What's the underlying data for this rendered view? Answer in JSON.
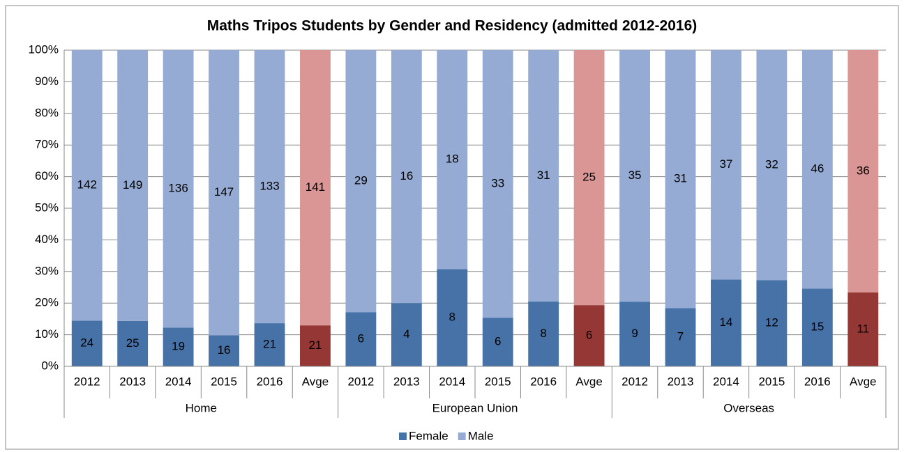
{
  "chart_data": {
    "type": "bar",
    "stacking": "percent",
    "title": "Maths Tripos Students by Gender and Residency (admitted 2012-2016)",
    "categories": [
      "2012",
      "2013",
      "2014",
      "2015",
      "2016",
      "Avge",
      "2012",
      "2013",
      "2014",
      "2015",
      "2016",
      "Avge",
      "2012",
      "2013",
      "2014",
      "2015",
      "2016",
      "Avge"
    ],
    "groups": [
      "Home",
      "European Union",
      "Overseas"
    ],
    "series": [
      {
        "name": "Female",
        "color": "#4672a8",
        "colors": [
          "#4672a8",
          "#4672a8",
          "#4672a8",
          "#4672a8",
          "#4672a8",
          "#953735",
          "#4672a8",
          "#4672a8",
          "#4672a8",
          "#4672a8",
          "#4672a8",
          "#953735",
          "#4672a8",
          "#4672a8",
          "#4672a8",
          "#4672a8",
          "#4672a8",
          "#953735"
        ],
        "values": [
          24,
          25,
          19,
          16,
          21,
          21,
          6,
          4,
          8,
          6,
          8,
          6,
          9,
          7,
          14,
          12,
          15,
          11
        ]
      },
      {
        "name": "Male",
        "color": "#95abd3",
        "colors": [
          "#95abd3",
          "#95abd3",
          "#95abd3",
          "#95abd3",
          "#95abd3",
          "#d99694",
          "#95abd3",
          "#95abd3",
          "#95abd3",
          "#95abd3",
          "#95abd3",
          "#d99694",
          "#95abd3",
          "#95abd3",
          "#95abd3",
          "#95abd3",
          "#95abd3",
          "#d99694"
        ],
        "values": [
          142,
          149,
          136,
          147,
          133,
          141,
          29,
          16,
          18,
          33,
          31,
          25,
          35,
          31,
          37,
          32,
          46,
          36
        ]
      }
    ],
    "ylim": [
      0,
      100
    ],
    "yticks": [
      {
        "value": 0,
        "label": "0%"
      },
      {
        "value": 10,
        "label": "10%"
      },
      {
        "value": 20,
        "label": "20%"
      },
      {
        "value": 30,
        "label": "30%"
      },
      {
        "value": 40,
        "label": "40%"
      },
      {
        "value": 50,
        "label": "50%"
      },
      {
        "value": 60,
        "label": "60%"
      },
      {
        "value": 70,
        "label": "70%"
      },
      {
        "value": 80,
        "label": "80%"
      },
      {
        "value": 90,
        "label": "90%"
      },
      {
        "value": 100,
        "label": "100%"
      }
    ],
    "grid": true,
    "legend": "bottom"
  }
}
